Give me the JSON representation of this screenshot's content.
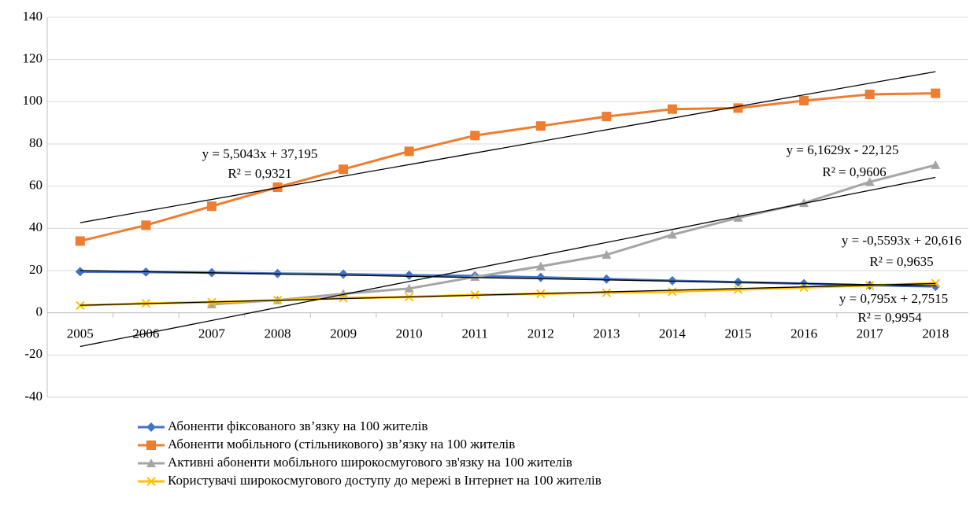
{
  "chart_data": {
    "type": "line",
    "categories": [
      "2005",
      "2006",
      "2007",
      "2008",
      "2009",
      "2010",
      "2011",
      "2012",
      "2013",
      "2014",
      "2015",
      "2016",
      "2017",
      "2018"
    ],
    "ylim": [
      -40,
      140
    ],
    "yticks": [
      -40,
      -20,
      0,
      20,
      40,
      60,
      80,
      100,
      120,
      140
    ],
    "grid": true,
    "legend": "bottom",
    "series": [
      {
        "name": "Абоненти фіксованого зв’язку на 100 жителів",
        "color": "#4472c4",
        "marker": "diamond",
        "values": [
          19.5,
          19.3,
          19,
          18.6,
          18.3,
          17.8,
          17.5,
          16.8,
          16,
          15.2,
          14.5,
          13.8,
          13,
          12.5
        ],
        "trendline": {
          "slope": -0.5593,
          "intercept": 20.616,
          "equation": "y = -0,5593x + 20,616",
          "r2": "R² = 0,9635"
        }
      },
      {
        "name": "Абоненти мобільного (стільникового) зв’язку на 100 жителів",
        "color": "#ed7d31",
        "marker": "square",
        "values": [
          34,
          41.5,
          50.5,
          59.5,
          68,
          76.5,
          84,
          88.5,
          93,
          96.5,
          97,
          100.5,
          103.5,
          104
        ],
        "trendline": {
          "slope": 5.5043,
          "intercept": 37.195,
          "equation": "y = 5,5043x + 37,195",
          "r2": "R² = 0,9321"
        }
      },
      {
        "name": "Активні абоненти мобільного широкосмугового зв'язку на 100 жителів",
        "color": "#a5a5a5",
        "marker": "triangle",
        "values": [
          null,
          null,
          4,
          6,
          9,
          11.5,
          17,
          22,
          27.5,
          37,
          45,
          52,
          62,
          70
        ],
        "trendline": {
          "slope": 6.1629,
          "intercept": -22.125,
          "equation": "y = 6,1629x - 22,125",
          "r2": "R² = 0,9606"
        }
      },
      {
        "name": "Користувачі широкосмугового доступу до мережі в Інтернет на 100 жителів",
        "color": "#ffc000",
        "marker": "x",
        "values": [
          3.5,
          4.5,
          5,
          6,
          7,
          7.5,
          8.5,
          9,
          9.5,
          10,
          11,
          12,
          13,
          14
        ],
        "trendline": {
          "slope": 0.795,
          "intercept": 2.7515,
          "equation": "y = 0,795x + 2,7515",
          "r2": "R² = 0,9954"
        }
      }
    ]
  }
}
